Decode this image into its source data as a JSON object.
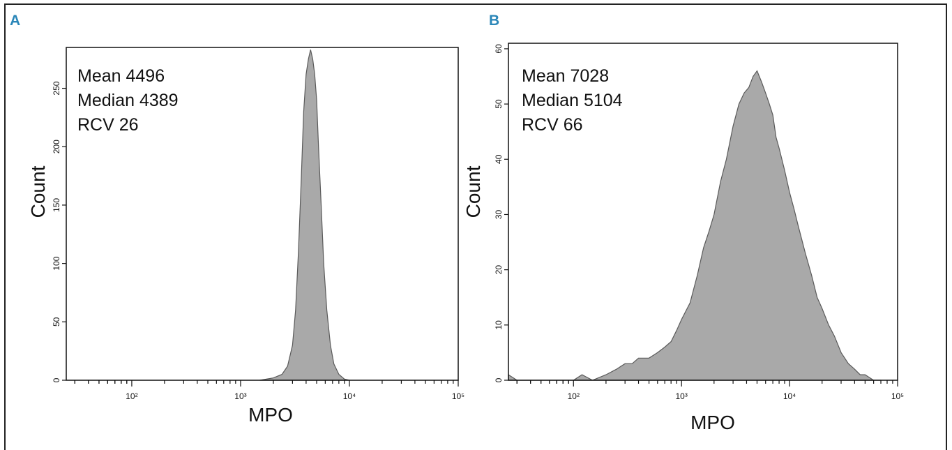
{
  "chart_data": [
    {
      "panel": "A",
      "type": "area",
      "xlabel": "MPO",
      "ylabel": "Count",
      "x_scale": "log",
      "xlim": [
        25,
        100000
      ],
      "ylim": [
        0,
        285
      ],
      "yticks": [
        0,
        50,
        100,
        150,
        200,
        250
      ],
      "xticks": [
        {
          "value": 100,
          "label": "10²"
        },
        {
          "value": 1000,
          "label": "10³"
        },
        {
          "value": 10000,
          "label": "10⁴"
        },
        {
          "value": 100000,
          "label": "10⁵"
        }
      ],
      "stats": [
        "Mean 4496",
        "Median 4389",
        "RCV 26"
      ],
      "fill_color": "#a9a9a9",
      "x": [
        1500,
        2000,
        2400,
        2700,
        3000,
        3200,
        3400,
        3600,
        3800,
        4000,
        4200,
        4400,
        4600,
        4800,
        5000,
        5200,
        5500,
        5800,
        6200,
        6700,
        7200,
        8000,
        9000,
        10000
      ],
      "y": [
        0,
        2,
        5,
        12,
        30,
        60,
        110,
        170,
        230,
        262,
        275,
        283,
        275,
        262,
        240,
        200,
        150,
        100,
        60,
        30,
        14,
        5,
        1,
        0
      ]
    },
    {
      "panel": "B",
      "type": "area",
      "xlabel": "MPO",
      "ylabel": "Count",
      "x_scale": "log",
      "xlim": [
        25,
        100000
      ],
      "ylim": [
        0,
        61
      ],
      "yticks": [
        0,
        10,
        20,
        30,
        40,
        50,
        60
      ],
      "xticks": [
        {
          "value": 100,
          "label": "10²"
        },
        {
          "value": 1000,
          "label": "10³"
        },
        {
          "value": 10000,
          "label": "10⁴"
        },
        {
          "value": 100000,
          "label": "10⁵"
        }
      ],
      "stats": [
        "Mean 7028",
        "Median 5104",
        "RCV 66"
      ],
      "fill_color": "#a9a9a9",
      "x": [
        25,
        30,
        40,
        60,
        80,
        100,
        120,
        150,
        200,
        250,
        300,
        350,
        400,
        500,
        600,
        700,
        800,
        900,
        1000,
        1200,
        1400,
        1600,
        1800,
        2000,
        2300,
        2600,
        3000,
        3400,
        3800,
        4200,
        4600,
        5000,
        5500,
        6000,
        6500,
        7000,
        7500,
        8000,
        9000,
        10000,
        11000,
        12000,
        14000,
        16000,
        18000,
        20000,
        23000,
        26000,
        30000,
        35000,
        40000,
        45000,
        50000,
        60000,
        70000
      ],
      "y": [
        1,
        0,
        0,
        0,
        0,
        0,
        1,
        0,
        1,
        2,
        3,
        3,
        4,
        4,
        5,
        6,
        7,
        9,
        11,
        14,
        19,
        24,
        27,
        30,
        36,
        40,
        46,
        50,
        52,
        53,
        55,
        56,
        54,
        52,
        50,
        48,
        44,
        42,
        38,
        34,
        31,
        28,
        23,
        19,
        15,
        13,
        10,
        8,
        5,
        3,
        2,
        1,
        1,
        0,
        0
      ]
    }
  ]
}
